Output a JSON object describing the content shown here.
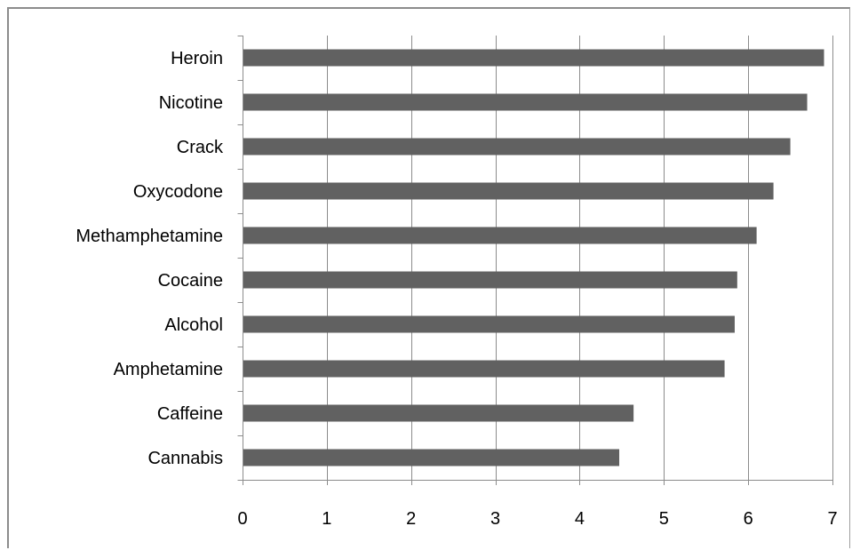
{
  "chart_data": {
    "type": "bar",
    "orientation": "horizontal",
    "title": "",
    "xlabel": "",
    "ylabel": "",
    "categories": [
      "Heroin",
      "Nicotine",
      "Crack",
      "Oxycodone",
      "Methamphetamine",
      "Cocaine",
      "Alcohol",
      "Amphetamine",
      "Caffeine",
      "Cannabis"
    ],
    "values": [
      6.9,
      6.7,
      6.5,
      6.3,
      6.1,
      5.87,
      5.84,
      5.72,
      4.64,
      4.47
    ],
    "xlim": [
      0,
      7
    ],
    "x_ticks": [
      "0",
      "1",
      "2",
      "3",
      "4",
      "5",
      "6",
      "7"
    ],
    "grid": "vertical major gridlines",
    "legend": "none",
    "bar_color": "#616161",
    "grid_color": "#8c8c8c"
  }
}
